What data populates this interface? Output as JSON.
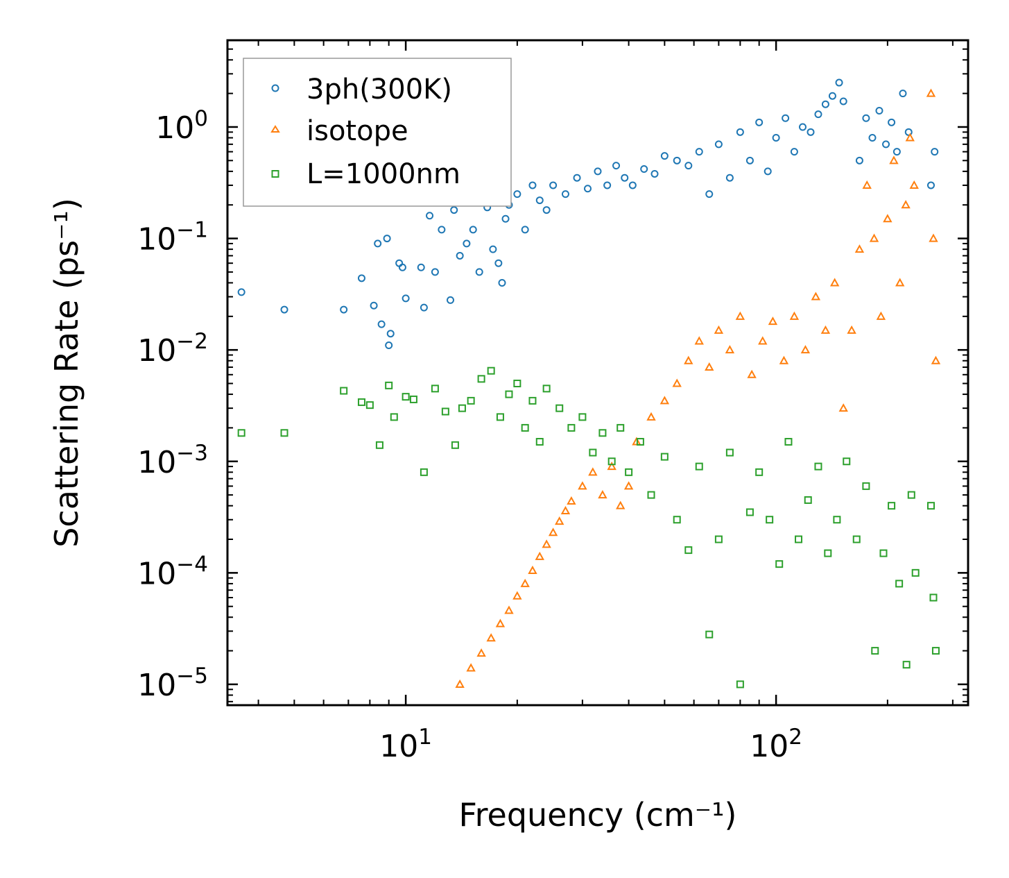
{
  "chart_data": {
    "type": "scatter",
    "xscale": "log",
    "yscale": "log",
    "xlim": [
      3.3,
      330
    ],
    "ylim": [
      6.5e-06,
      6
    ],
    "xlabel": "Frequency (cm⁻¹)",
    "ylabel": "Scattering Rate (ps⁻¹)",
    "xticks": [
      {
        "value": 10,
        "base": "10",
        "exp": "1"
      },
      {
        "value": 100,
        "base": "10",
        "exp": "2"
      }
    ],
    "yticks": [
      {
        "value": 1,
        "base": "10",
        "exp": "0"
      },
      {
        "value": 0.1,
        "base": "10",
        "exp": "−1"
      },
      {
        "value": 0.01,
        "base": "10",
        "exp": "−2"
      },
      {
        "value": 0.001,
        "base": "10",
        "exp": "−3"
      },
      {
        "value": 0.0001,
        "base": "10",
        "exp": "−4"
      },
      {
        "value": 1e-05,
        "base": "10",
        "exp": "−5"
      }
    ],
    "legend_position": "top-left",
    "series": [
      {
        "name": "3ph(300K)",
        "marker": "circle",
        "color": "#1f77b4",
        "x": [
          3.6,
          4.7,
          6.8,
          7.6,
          8.2,
          8.4,
          8.6,
          8.9,
          9.0,
          9.1,
          9.6,
          9.8,
          10.0,
          11.0,
          11.2,
          11.6,
          12.0,
          12.5,
          13.2,
          13.5,
          14.0,
          14.6,
          15.2,
          15.8,
          16.6,
          17.2,
          17.8,
          18.2,
          18.6,
          19.0,
          20.0,
          21.0,
          22.0,
          23.0,
          24.0,
          25.0,
          27.0,
          29.0,
          31.0,
          33.0,
          35.0,
          37.0,
          39.0,
          41.0,
          44.0,
          47.0,
          50.0,
          54.0,
          58.0,
          62.0,
          66.0,
          70.0,
          75.0,
          80.0,
          85.0,
          90.0,
          95.0,
          100.0,
          106.0,
          112.0,
          118.0,
          124.0,
          130.0,
          136.0,
          142.0,
          148.0,
          152.0,
          168.0,
          175.0,
          182.0,
          190.0,
          198.0,
          205.0,
          212.0,
          220.0,
          228.0,
          262.0,
          268.0
        ],
        "y": [
          0.033,
          0.023,
          0.023,
          0.044,
          0.025,
          0.09,
          0.017,
          0.1,
          0.011,
          0.014,
          0.06,
          0.055,
          0.029,
          0.055,
          0.024,
          0.16,
          0.05,
          0.12,
          0.028,
          0.18,
          0.07,
          0.09,
          0.12,
          0.05,
          0.19,
          0.08,
          0.06,
          0.04,
          0.15,
          0.2,
          0.25,
          0.12,
          0.3,
          0.22,
          0.18,
          0.3,
          0.25,
          0.35,
          0.28,
          0.4,
          0.3,
          0.45,
          0.35,
          0.3,
          0.42,
          0.38,
          0.55,
          0.5,
          0.45,
          0.6,
          0.25,
          0.7,
          0.35,
          0.9,
          0.5,
          1.1,
          0.4,
          0.8,
          1.2,
          0.6,
          1.0,
          0.9,
          1.3,
          1.6,
          1.9,
          2.5,
          1.7,
          0.5,
          1.2,
          0.8,
          1.4,
          0.7,
          1.1,
          0.6,
          2.0,
          0.9,
          0.3,
          0.6
        ]
      },
      {
        "name": "isotope",
        "marker": "triangle",
        "color": "#ff7f0e",
        "x": [
          14.0,
          15.0,
          16.0,
          17.0,
          18.0,
          19.0,
          20.0,
          21.0,
          22.0,
          23.0,
          24.0,
          25.0,
          26.0,
          27.0,
          28.0,
          30.0,
          32.0,
          34.0,
          36.0,
          38.0,
          40.0,
          42.0,
          46.0,
          50.0,
          54.0,
          58.0,
          62.0,
          66.0,
          70.0,
          75.0,
          80.0,
          86.0,
          92.0,
          98.0,
          105.0,
          112.0,
          120.0,
          128.0,
          136.0,
          144.0,
          152.0,
          160.0,
          168.0,
          176.0,
          184.0,
          192.0,
          200.0,
          208.0,
          216.0,
          224.0,
          230.0,
          236.0,
          262.0,
          266.0,
          270.0
        ],
        "y": [
          1e-05,
          1.4e-05,
          1.9e-05,
          2.6e-05,
          3.5e-05,
          4.6e-05,
          6.2e-05,
          8e-05,
          0.000105,
          0.00014,
          0.00018,
          0.00023,
          0.00029,
          0.00036,
          0.00044,
          0.0006,
          0.0008,
          0.0005,
          0.0009,
          0.0004,
          0.0006,
          0.0015,
          0.0025,
          0.0035,
          0.005,
          0.008,
          0.012,
          0.007,
          0.015,
          0.01,
          0.02,
          0.006,
          0.012,
          0.018,
          0.008,
          0.02,
          0.01,
          0.03,
          0.015,
          0.04,
          0.003,
          0.015,
          0.08,
          0.3,
          0.1,
          0.02,
          0.15,
          0.5,
          0.04,
          0.2,
          0.8,
          0.3,
          2.0,
          0.1,
          0.008
        ]
      },
      {
        "name": "L=1000nm",
        "marker": "square",
        "color": "#2ca02c",
        "x": [
          3.6,
          4.7,
          6.8,
          7.6,
          8.0,
          8.5,
          9.0,
          9.3,
          10.0,
          10.5,
          11.2,
          12.0,
          12.8,
          13.6,
          14.2,
          15.0,
          16.0,
          17.0,
          18.0,
          19.0,
          20.0,
          21.0,
          22.0,
          23.0,
          24.0,
          26.0,
          28.0,
          30.0,
          32.0,
          34.0,
          36.0,
          38.0,
          40.0,
          43.0,
          46.0,
          50.0,
          54.0,
          58.0,
          62.0,
          66.0,
          70.0,
          75.0,
          80.0,
          85.0,
          90.0,
          96.0,
          102.0,
          108.0,
          115.0,
          122.0,
          130.0,
          138.0,
          146.0,
          155.0,
          165.0,
          175.0,
          185.0,
          195.0,
          205.0,
          215.0,
          225.0,
          232.0,
          238.0,
          262.0,
          266.0,
          270.0
        ],
        "y": [
          0.0018,
          0.0018,
          0.0043,
          0.0034,
          0.0032,
          0.0014,
          0.0048,
          0.0025,
          0.0038,
          0.0036,
          0.0008,
          0.0045,
          0.0028,
          0.0014,
          0.003,
          0.0035,
          0.0055,
          0.0065,
          0.0025,
          0.004,
          0.005,
          0.002,
          0.0035,
          0.0015,
          0.0045,
          0.003,
          0.002,
          0.0025,
          0.0012,
          0.0018,
          0.001,
          0.002,
          0.0008,
          0.0015,
          0.0005,
          0.0011,
          0.0003,
          0.00016,
          0.0009,
          2.8e-05,
          0.0002,
          0.0012,
          1e-05,
          0.00035,
          0.0008,
          0.0003,
          0.00012,
          0.0015,
          0.0002,
          0.00045,
          0.0009,
          0.00015,
          0.0003,
          0.001,
          0.0002,
          0.0006,
          2e-05,
          0.00015,
          0.0004,
          8e-05,
          1.5e-05,
          0.0005,
          0.0001,
          0.0004,
          6e-05,
          2e-05
        ]
      }
    ]
  }
}
